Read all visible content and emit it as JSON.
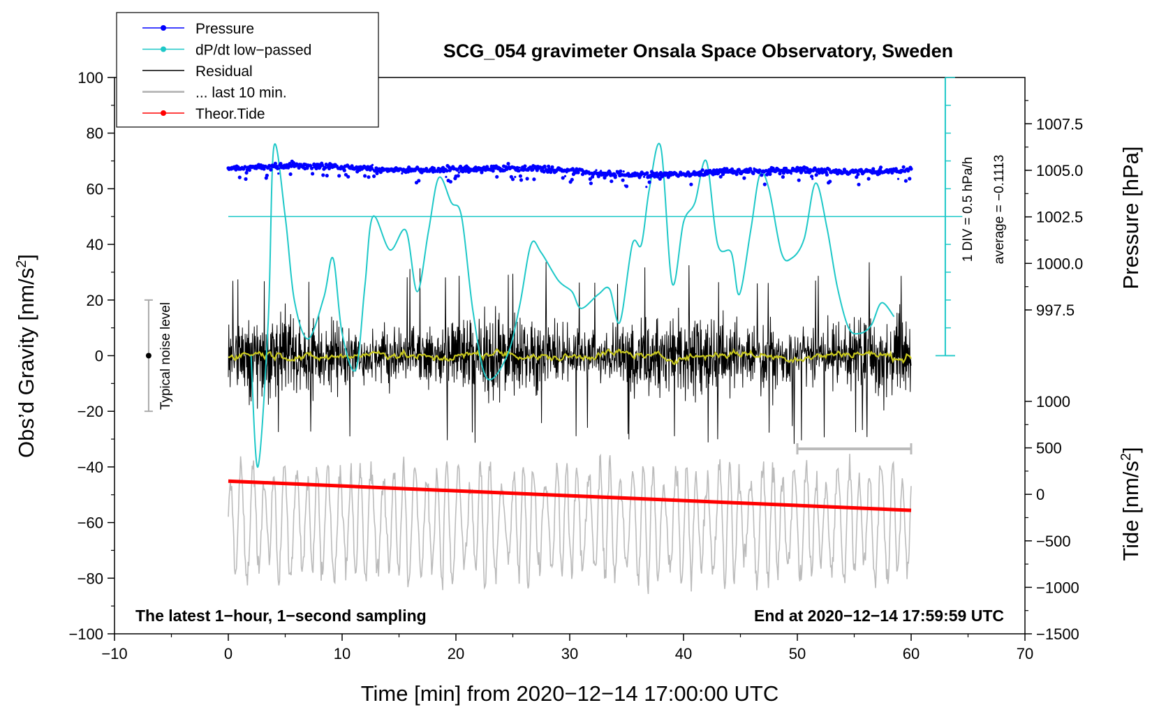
{
  "chart_data": {
    "type": "line",
    "title": "SCG_054 gravimeter Onsala Space Observatory, Sweden",
    "xlabel": "Time [min] from 2020−12−14 17:00:00 UTC",
    "xlim": [
      -10,
      70
    ],
    "xticks": [
      "−10",
      "0",
      "10",
      "20",
      "30",
      "40",
      "50",
      "60",
      "70"
    ],
    "ylabel_left": "Obs’d Gravity [nm/s²]",
    "ylim_left": [
      -100,
      100
    ],
    "yticks_left": [
      "100",
      "80",
      "60",
      "40",
      "20",
      "0",
      "−20",
      "−40",
      "−60",
      "−80",
      "−100"
    ],
    "ylabel_pressure": "Pressure [hPa]",
    "yticks_pressure": [
      "1007.5",
      "1005.0",
      "1002.5",
      "1000.0",
      "997.5"
    ],
    "ylabel_tide": "Tide [nm/s²]",
    "yticks_tide": [
      "1000",
      "500",
      "0",
      "−500",
      "−1000",
      "−1500"
    ],
    "legend": [
      {
        "label": "Pressure",
        "color": "#0000ff",
        "marker": true
      },
      {
        "label": "dP/dt low−passed",
        "color": "#1ec8c8",
        "marker": true
      },
      {
        "label": "Residual",
        "color": "#000000",
        "marker": false
      },
      {
        "label": "... last 10 min.",
        "color": "#bbbbbb",
        "marker": false
      },
      {
        "label": "Theor.Tide",
        "color": "#ff0000",
        "marker": true
      }
    ],
    "series": [
      {
        "name": "Pressure",
        "unit": "hPa",
        "x_range": [
          0,
          60
        ],
        "approx_level": 1005.0
      },
      {
        "name": "dP/dt low−passed",
        "unit": "hPa/h",
        "average": -0.1113,
        "approx_keypoints": [
          [
            2.0,
            0
          ],
          [
            2.6,
            -40
          ],
          [
            3.5,
            12
          ],
          [
            4.0,
            75
          ],
          [
            5.0,
            50
          ],
          [
            5.8,
            20
          ],
          [
            7.0,
            6
          ],
          [
            8.4,
            21
          ],
          [
            9.2,
            35
          ],
          [
            10.0,
            8
          ],
          [
            11.2,
            -5
          ],
          [
            12.0,
            25
          ],
          [
            12.7,
            50
          ],
          [
            14.2,
            38
          ],
          [
            15.6,
            45
          ],
          [
            16.6,
            23
          ],
          [
            17.6,
            45
          ],
          [
            18.5,
            64
          ],
          [
            19.6,
            55
          ],
          [
            20.5,
            50
          ],
          [
            21.5,
            16
          ],
          [
            22.7,
            -8
          ],
          [
            24.5,
            0
          ],
          [
            25.6,
            18
          ],
          [
            26.6,
            40
          ],
          [
            27.5,
            37
          ],
          [
            29.0,
            27
          ],
          [
            30.2,
            23
          ],
          [
            31.0,
            17
          ],
          [
            32.5,
            22
          ],
          [
            33.5,
            24
          ],
          [
            34.4,
            12
          ],
          [
            35.5,
            40
          ],
          [
            36.3,
            40
          ],
          [
            37.0,
            60
          ],
          [
            38.0,
            75
          ],
          [
            39.0,
            26
          ],
          [
            40.0,
            48
          ],
          [
            41.0,
            55
          ],
          [
            42.0,
            70
          ],
          [
            43.0,
            40
          ],
          [
            44.2,
            37
          ],
          [
            44.9,
            22
          ],
          [
            45.9,
            45
          ],
          [
            46.7,
            65
          ],
          [
            47.5,
            60
          ],
          [
            48.6,
            37
          ],
          [
            49.5,
            35
          ],
          [
            50.6,
            42
          ],
          [
            51.6,
            62
          ],
          [
            52.6,
            46
          ],
          [
            53.5,
            25
          ],
          [
            54.5,
            10
          ],
          [
            55.5,
            8
          ],
          [
            56.5,
            11
          ],
          [
            57.4,
            19
          ],
          [
            58.5,
            14
          ]
        ]
      },
      {
        "name": "Residual",
        "unit": "nm/s²",
        "x_range": [
          0,
          60
        ],
        "approx_range": [
          -30,
          30
        ]
      },
      {
        "name": "... last 10 min.",
        "unit": "nm/s²",
        "x_range": [
          0,
          60
        ],
        "approx_center": -60
      },
      {
        "name": "Theor.Tide",
        "unit": "nm/s²",
        "x": [
          0,
          60
        ],
        "y_left": [
          -45.1,
          -55.6
        ],
        "tide_values": [
          140,
          -70
        ]
      }
    ],
    "pressure_scale": {
      "label_div": "1 DIV = 0.5 hPa/h",
      "label_avg": "average = −0.1113"
    },
    "noise_marker": {
      "label": "Typical noise level",
      "x": -7,
      "y": 0,
      "range": [
        -20,
        20
      ]
    },
    "window_marker": {
      "x": [
        50,
        60
      ],
      "y": -33.5
    },
    "annotations": {
      "bottom_left": "The latest 1−hour, 1−second sampling",
      "bottom_right": "End at 2020−12−14 17:59:59 UTC"
    }
  }
}
